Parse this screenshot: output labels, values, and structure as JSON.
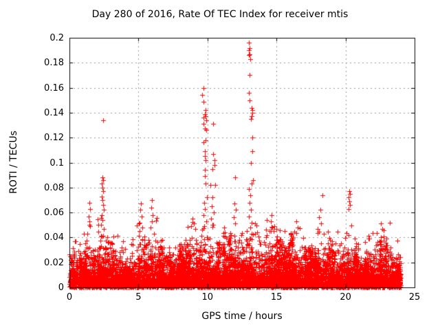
{
  "chart_data": {
    "type": "scatter",
    "title": "Day 280 of 2016, Rate Of TEC Index for receiver mtis",
    "xlabel": "GPS time / hours",
    "ylabel": "ROTI / TECUs",
    "xlim": [
      0,
      25
    ],
    "ylim": [
      0,
      0.2
    ],
    "xticks": {
      "values": [
        0,
        5,
        10,
        15,
        20,
        25
      ],
      "labels": [
        "0",
        "5",
        "10",
        "15",
        "20",
        "25"
      ]
    },
    "yticks": {
      "values": [
        0,
        0.02,
        0.04,
        0.06,
        0.08,
        0.1,
        0.12,
        0.14,
        0.16,
        0.18,
        0.2
      ],
      "labels": [
        "0",
        "0.02",
        "0.04",
        "0.06",
        "0.08",
        "0.1",
        "0.12",
        "0.14",
        "0.16",
        "0.18",
        "0.2"
      ]
    },
    "grid": {
      "style": "dashed",
      "color": "#999999"
    },
    "axis_color": "#000000",
    "marker": "plus",
    "marker_color": "#ff0000",
    "x_data_range": [
      0,
      24
    ],
    "outliers": [
      [
        2.45,
        0.134
      ],
      [
        2.4,
        0.088
      ],
      [
        2.45,
        0.086
      ],
      [
        2.35,
        0.083
      ],
      [
        2.4,
        0.08
      ],
      [
        2.45,
        0.077
      ],
      [
        2.35,
        0.073
      ],
      [
        2.4,
        0.07
      ],
      [
        2.45,
        0.066
      ],
      [
        2.5,
        0.062
      ],
      [
        2.35,
        0.058
      ],
      [
        2.4,
        0.054
      ],
      [
        2.3,
        0.05
      ],
      [
        2.5,
        0.047
      ],
      [
        1.45,
        0.068
      ],
      [
        1.5,
        0.063
      ],
      [
        1.4,
        0.057
      ],
      [
        1.45,
        0.053
      ],
      [
        1.5,
        0.049
      ],
      [
        5.2,
        0.067
      ],
      [
        5.15,
        0.062
      ],
      [
        5.25,
        0.057
      ],
      [
        5.1,
        0.052
      ],
      [
        5.3,
        0.048
      ],
      [
        6.0,
        0.07
      ],
      [
        5.95,
        0.064
      ],
      [
        6.05,
        0.058
      ],
      [
        6.0,
        0.053
      ],
      [
        5.9,
        0.048
      ],
      [
        8.9,
        0.055
      ],
      [
        9.0,
        0.051
      ],
      [
        9.1,
        0.047
      ],
      [
        9.7,
        0.16
      ],
      [
        9.6,
        0.154
      ],
      [
        9.7,
        0.149
      ],
      [
        9.85,
        0.142
      ],
      [
        9.8,
        0.139
      ],
      [
        9.85,
        0.137
      ],
      [
        9.7,
        0.136
      ],
      [
        9.9,
        0.134
      ],
      [
        9.7,
        0.131
      ],
      [
        9.8,
        0.127
      ],
      [
        9.9,
        0.126
      ],
      [
        9.85,
        0.118
      ],
      [
        9.7,
        0.116
      ],
      [
        9.8,
        0.109
      ],
      [
        9.8,
        0.105
      ],
      [
        9.85,
        0.102
      ],
      [
        9.8,
        0.094
      ],
      [
        9.8,
        0.089
      ],
      [
        9.85,
        0.083
      ],
      [
        9.95,
        0.072
      ],
      [
        9.75,
        0.068
      ],
      [
        9.8,
        0.063
      ],
      [
        9.7,
        0.058
      ],
      [
        9.9,
        0.053
      ],
      [
        9.75,
        0.049
      ],
      [
        10.4,
        0.131
      ],
      [
        10.4,
        0.107
      ],
      [
        10.5,
        0.102
      ],
      [
        10.5,
        0.098
      ],
      [
        10.35,
        0.095
      ],
      [
        10.2,
        0.082
      ],
      [
        10.55,
        0.082
      ],
      [
        10.35,
        0.072
      ],
      [
        10.3,
        0.065
      ],
      [
        10.45,
        0.06
      ],
      [
        10.25,
        0.055
      ],
      [
        10.4,
        0.05
      ],
      [
        11.2,
        0.048
      ],
      [
        12.0,
        0.088
      ],
      [
        11.95,
        0.067
      ],
      [
        12.05,
        0.062
      ],
      [
        11.9,
        0.056
      ],
      [
        12.0,
        0.051
      ],
      [
        13.0,
        0.196
      ],
      [
        13.05,
        0.192
      ],
      [
        13.0,
        0.19
      ],
      [
        13.05,
        0.187
      ],
      [
        13.0,
        0.186
      ],
      [
        13.1,
        0.183
      ],
      [
        13.05,
        0.17
      ],
      [
        13.0,
        0.156
      ],
      [
        13.05,
        0.15
      ],
      [
        13.2,
        0.144
      ],
      [
        13.25,
        0.142
      ],
      [
        13.25,
        0.14
      ],
      [
        13.2,
        0.137
      ],
      [
        13.15,
        0.135
      ],
      [
        13.25,
        0.12
      ],
      [
        13.25,
        0.109
      ],
      [
        13.15,
        0.1
      ],
      [
        13.3,
        0.086
      ],
      [
        13.2,
        0.083
      ],
      [
        13.0,
        0.079
      ],
      [
        13.1,
        0.074
      ],
      [
        13.05,
        0.068
      ],
      [
        13.15,
        0.062
      ],
      [
        13.0,
        0.057
      ],
      [
        13.2,
        0.052
      ],
      [
        14.65,
        0.058
      ],
      [
        14.6,
        0.053
      ],
      [
        14.7,
        0.048
      ],
      [
        16.45,
        0.053
      ],
      [
        16.55,
        0.048
      ],
      [
        18.35,
        0.074
      ],
      [
        18.2,
        0.062
      ],
      [
        18.1,
        0.056
      ],
      [
        18.25,
        0.051
      ],
      [
        18.0,
        0.047
      ],
      [
        20.25,
        0.077
      ],
      [
        20.3,
        0.075
      ],
      [
        20.2,
        0.072
      ],
      [
        20.25,
        0.069
      ],
      [
        20.3,
        0.066
      ],
      [
        20.2,
        0.063
      ],
      [
        22.65,
        0.047
      ],
      [
        22.75,
        0.046
      ],
      [
        23.2,
        0.052
      ]
    ],
    "background": {
      "count": 6800,
      "seed": 42,
      "mean_factor": 0.22,
      "envelope_bins": [
        0.042,
        0.038,
        0.045,
        0.036,
        0.055,
        0.048,
        0.04,
        0.035,
        0.032,
        0.04,
        0.048,
        0.042,
        0.048,
        0.036,
        0.03,
        0.036,
        0.042,
        0.048,
        0.044,
        0.055,
        0.05,
        0.035,
        0.042,
        0.048,
        0.05,
        0.045,
        0.052,
        0.042,
        0.048,
        0.045,
        0.04,
        0.038,
        0.045,
        0.042,
        0.038,
        0.042,
        0.048,
        0.04,
        0.042,
        0.038,
        0.045,
        0.04,
        0.03,
        0.035,
        0.042,
        0.045,
        0.04,
        0.035
      ]
    },
    "bursts": {
      "count": 60,
      "seed": 7,
      "sigma_x": 0.06,
      "points_min": 8,
      "points_max": 26,
      "height_factor": [
        0.6,
        1.15
      ]
    }
  }
}
